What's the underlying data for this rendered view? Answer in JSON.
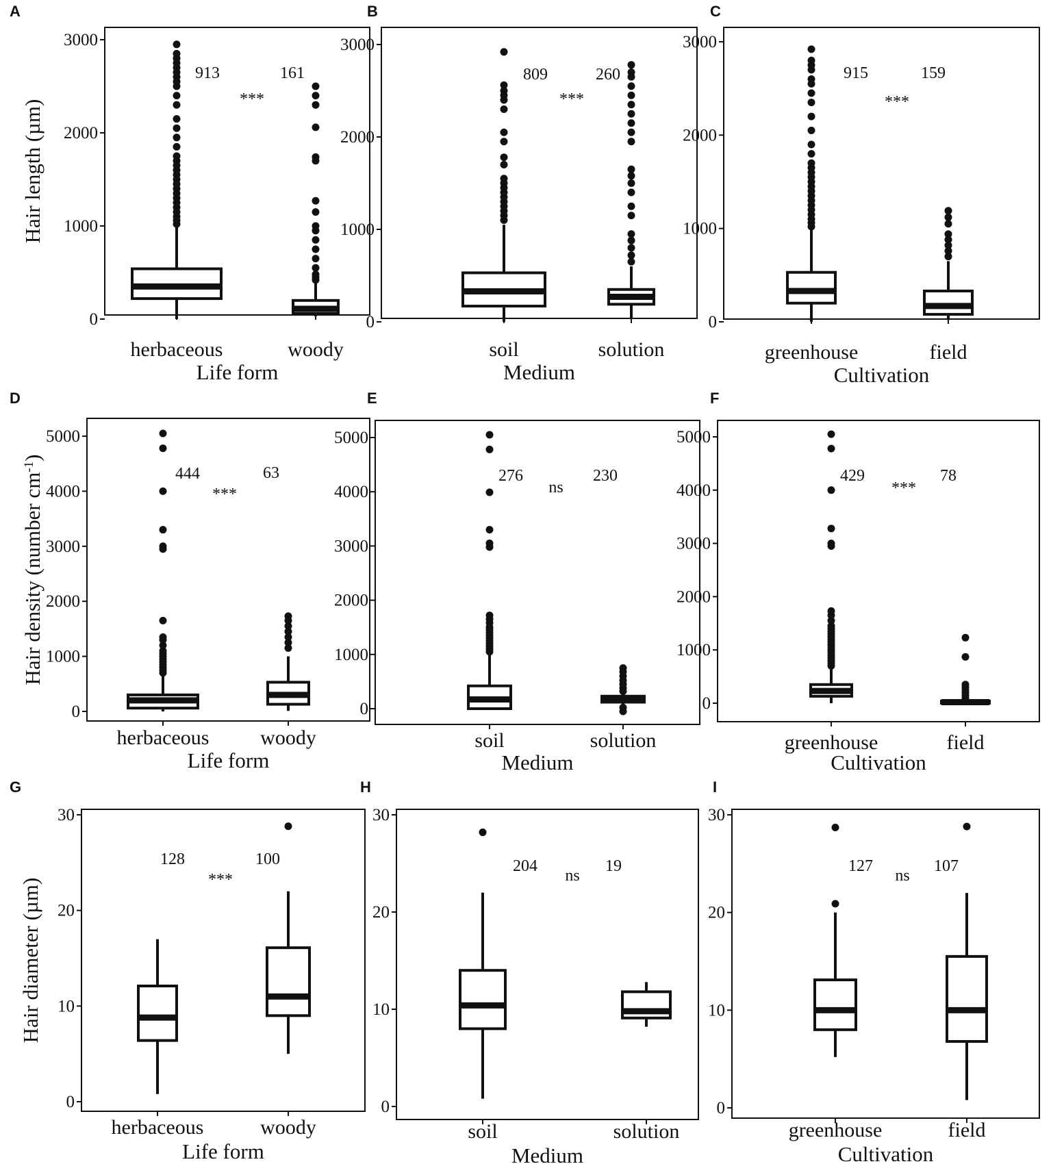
{
  "chart_data": [
    {
      "panel": "A",
      "type": "box",
      "xlabel": "Life form",
      "ylabel": "Hair length (µm)",
      "ylim": [
        0,
        3000
      ],
      "yticks": [
        0,
        1000,
        2000,
        3000
      ],
      "categories": [
        "herbaceous",
        "woody"
      ],
      "boxes": [
        {
          "name": "herbaceous",
          "n": "913",
          "whisker_low": 0,
          "q1": 220,
          "median": 350,
          "q3": 540,
          "whisker_high": 1000,
          "outliers": [
            1020,
            1060,
            1100,
            1150,
            1200,
            1250,
            1300,
            1350,
            1400,
            1450,
            1500,
            1550,
            1600,
            1650,
            1700,
            1750,
            1850,
            1950,
            2050,
            2150,
            2300,
            2400,
            2500,
            2550,
            2600,
            2650,
            2700,
            2750,
            2800,
            2850,
            2950
          ]
        },
        {
          "name": "woody",
          "n": "161",
          "whisker_low": 30,
          "q1": 60,
          "median": 110,
          "q3": 200,
          "whisker_high": 400,
          "outliers": [
            420,
            450,
            480,
            550,
            650,
            750,
            850,
            950,
            1000,
            1150,
            1270,
            1700,
            1740,
            2060,
            2300,
            2400,
            2500
          ]
        }
      ],
      "significance": "***"
    },
    {
      "panel": "B",
      "type": "box",
      "xlabel": "Medium",
      "ylabel": "",
      "ylim": [
        0,
        3000
      ],
      "yticks": [
        0,
        1000,
        2000,
        3000
      ],
      "categories": [
        "soil",
        "solution"
      ],
      "boxes": [
        {
          "name": "soil",
          "n": "809",
          "whisker_low": 0,
          "q1": 170,
          "median": 330,
          "q3": 530,
          "whisker_high": 1050,
          "outliers": [
            1100,
            1150,
            1200,
            1250,
            1300,
            1350,
            1400,
            1450,
            1500,
            1550,
            1700,
            1780,
            1950,
            2050,
            2300,
            2400,
            2450,
            2500,
            2560,
            2920
          ]
        },
        {
          "name": "solution",
          "n": "260",
          "whisker_low": 30,
          "q1": 190,
          "median": 270,
          "q3": 350,
          "whisker_high": 600,
          "outliers": [
            650,
            720,
            800,
            880,
            950,
            1150,
            1250,
            1400,
            1500,
            1580,
            1650,
            1950,
            2050,
            2150,
            2250,
            2350,
            2450,
            2550,
            2650,
            2700,
            2780
          ]
        }
      ],
      "significance": "***"
    },
    {
      "panel": "C",
      "type": "box",
      "xlabel": "Cultivation",
      "ylabel": "",
      "ylim": [
        0,
        3000
      ],
      "yticks": [
        0,
        1000,
        2000,
        3000
      ],
      "categories": [
        "greenhouse",
        "field"
      ],
      "boxes": [
        {
          "name": "greenhouse",
          "n": "915",
          "whisker_low": 0,
          "q1": 200,
          "median": 330,
          "q3": 530,
          "whisker_high": 1000,
          "outliers": [
            1020,
            1060,
            1100,
            1150,
            1200,
            1250,
            1300,
            1350,
            1400,
            1450,
            1500,
            1550,
            1600,
            1650,
            1700,
            1800,
            1900,
            2050,
            2200,
            2350,
            2450,
            2550,
            2600,
            2700,
            2750,
            2800,
            2920
          ]
        },
        {
          "name": "field",
          "n": "159",
          "whisker_low": 20,
          "q1": 80,
          "median": 170,
          "q3": 330,
          "whisker_high": 650,
          "outliers": [
            700,
            760,
            820,
            880,
            940,
            1050,
            1120,
            1190
          ]
        }
      ],
      "significance": "***"
    },
    {
      "panel": "D",
      "type": "box",
      "xlabel": "Life form",
      "ylabel": "Hair density (number cm",
      "ylabel_sup": "-1",
      "ylabel_close": ")",
      "ylim": [
        0,
        5000
      ],
      "yticks": [
        0,
        1000,
        2000,
        3000,
        4000,
        5000
      ],
      "categories": [
        "herbaceous",
        "woody"
      ],
      "boxes": [
        {
          "name": "herbaceous",
          "n": "444",
          "whisker_low": 0,
          "q1": 60,
          "median": 200,
          "q3": 300,
          "whisker_high": 650,
          "outliers": [
            700,
            750,
            800,
            850,
            900,
            950,
            1000,
            1050,
            1100,
            1200,
            1300,
            1350,
            1650,
            2950,
            3000,
            3300,
            4000,
            4780,
            5050
          ]
        },
        {
          "name": "woody",
          "n": "63",
          "whisker_low": 10,
          "q1": 130,
          "median": 300,
          "q3": 530,
          "whisker_high": 1000,
          "outliers": [
            1150,
            1250,
            1350,
            1450,
            1550,
            1650,
            1730
          ]
        }
      ],
      "significance": "***"
    },
    {
      "panel": "E",
      "type": "box",
      "xlabel": "Medium",
      "ylabel": "",
      "ylim": [
        0,
        5000
      ],
      "yticks": [
        0,
        1000,
        2000,
        3000,
        4000,
        5000
      ],
      "categories": [
        "soil",
        "solution"
      ],
      "boxes": [
        {
          "name": "soil",
          "n": "276",
          "whisker_low": 0,
          "q1": 0,
          "median": 170,
          "q3": 420,
          "whisker_high": 1000,
          "outliers": [
            1050,
            1100,
            1150,
            1200,
            1250,
            1300,
            1350,
            1400,
            1450,
            1500,
            1580,
            1650,
            1720,
            2980,
            3050,
            3300,
            3990,
            4780,
            5050
          ]
        },
        {
          "name": "solution",
          "n": "230",
          "whisker_low": 60,
          "q1": 120,
          "median": 170,
          "q3": 230,
          "whisker_high": 300,
          "outliers": [
            -50,
            20,
            320,
            380,
            450,
            520,
            600,
            680,
            750
          ]
        }
      ],
      "significance": "ns"
    },
    {
      "panel": "F",
      "type": "box",
      "xlabel": "Cultivation",
      "ylabel": "",
      "ylim": [
        0,
        5000
      ],
      "yticks": [
        0,
        1000,
        2000,
        3000,
        4000,
        5000
      ],
      "categories": [
        "greenhouse",
        "field"
      ],
      "boxes": [
        {
          "name": "greenhouse",
          "n": "429",
          "whisker_low": 0,
          "q1": 130,
          "median": 230,
          "q3": 350,
          "whisker_high": 650,
          "outliers": [
            700,
            750,
            800,
            850,
            900,
            950,
            1000,
            1050,
            1100,
            1150,
            1200,
            1250,
            1300,
            1350,
            1400,
            1450,
            1550,
            1650,
            1730,
            2950,
            3000,
            3280,
            4000,
            4780,
            5050
          ]
        },
        {
          "name": "field",
          "n": "78",
          "whisker_low": -30,
          "q1": 0,
          "median": 20,
          "q3": 40,
          "whisker_high": 80,
          "outliers": [
            100,
            150,
            200,
            250,
            300,
            350,
            870,
            1230
          ]
        }
      ],
      "significance": "***"
    },
    {
      "panel": "G",
      "type": "box",
      "xlabel": "Life form",
      "ylabel": "Hair diameter (µm)",
      "ylim": [
        0,
        30
      ],
      "yticks": [
        0,
        10,
        20,
        30
      ],
      "categories": [
        "herbaceous",
        "woody"
      ],
      "boxes": [
        {
          "name": "herbaceous",
          "n": "128",
          "whisker_low": 0.8,
          "q1": 6.4,
          "median": 8.8,
          "q3": 12.1,
          "whisker_high": 17,
          "outliers": []
        },
        {
          "name": "woody",
          "n": "100",
          "whisker_low": 5,
          "q1": 9,
          "median": 11,
          "q3": 16.1,
          "whisker_high": 22,
          "outliers": [
            28.8
          ]
        }
      ],
      "significance": "***"
    },
    {
      "panel": "H",
      "type": "box",
      "xlabel": "Medium",
      "ylabel": "",
      "ylim": [
        0,
        30
      ],
      "yticks": [
        0,
        10,
        20,
        30
      ],
      "categories": [
        "soil",
        "solution"
      ],
      "boxes": [
        {
          "name": "soil",
          "n": "204",
          "whisker_low": 0.8,
          "q1": 8,
          "median": 10.4,
          "q3": 14,
          "whisker_high": 22,
          "outliers": [
            28.2
          ]
        },
        {
          "name": "solution",
          "n": "19",
          "whisker_low": 8.2,
          "q1": 9.1,
          "median": 9.8,
          "q3": 11.8,
          "whisker_high": 12.8,
          "outliers": []
        }
      ],
      "significance": "ns"
    },
    {
      "panel": "I",
      "type": "box",
      "xlabel": "Cultivation",
      "ylabel": "",
      "ylim": [
        0,
        30
      ],
      "yticks": [
        0,
        10,
        20,
        30
      ],
      "categories": [
        "greenhouse",
        "field"
      ],
      "boxes": [
        {
          "name": "greenhouse",
          "n": "127",
          "whisker_low": 5.2,
          "q1": 8,
          "median": 10,
          "q3": 13.1,
          "whisker_high": 20,
          "outliers": [
            20.9,
            28.7
          ]
        },
        {
          "name": "field",
          "n": "107",
          "whisker_low": 0.8,
          "q1": 6.8,
          "median": 10,
          "q3": 15.5,
          "whisker_high": 22,
          "outliers": [
            28.8
          ]
        }
      ],
      "significance": "ns"
    }
  ]
}
